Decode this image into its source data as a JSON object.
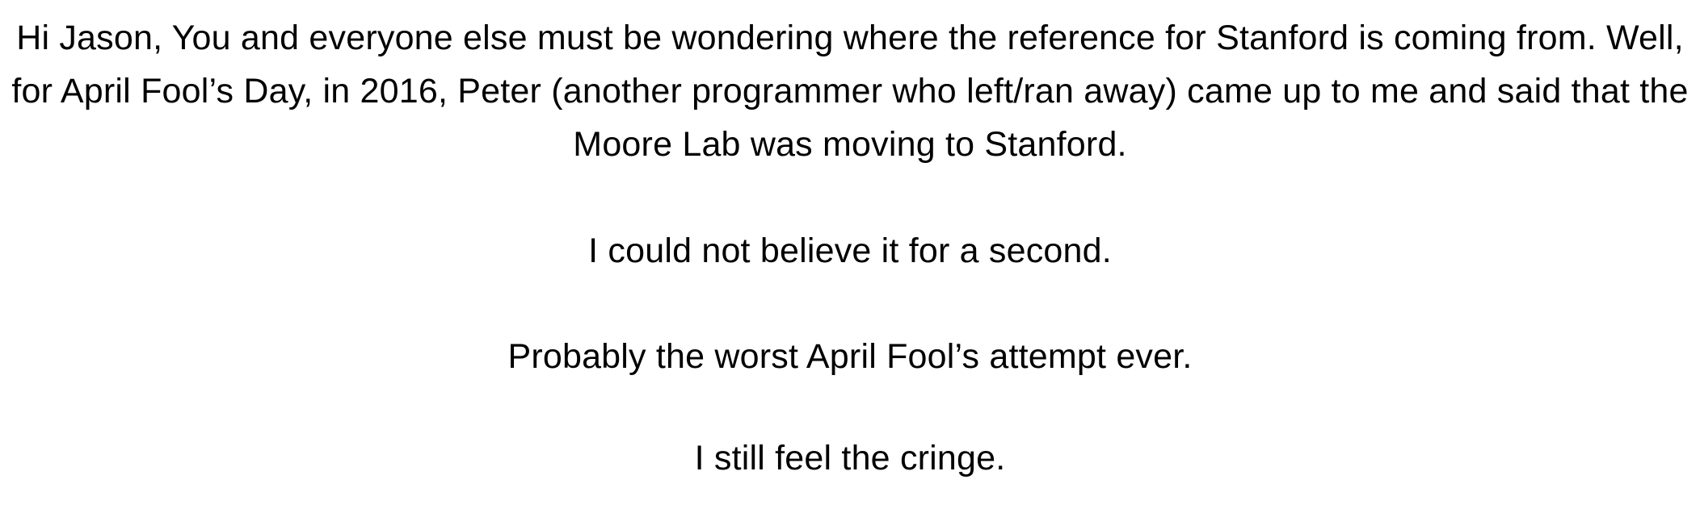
{
  "document": {
    "paragraphs": [
      "Hi Jason, You and everyone else must be wondering where the reference for Stanford is coming from. Well, for April Fool’s Day, in 2016, Peter (another programmer who left/ran away) came up to me and said that the Moore Lab was moving to Stanford.",
      "I could not believe it for a second.",
      "Probably the worst April Fool’s attempt ever.",
      "I still feel the cringe."
    ]
  }
}
